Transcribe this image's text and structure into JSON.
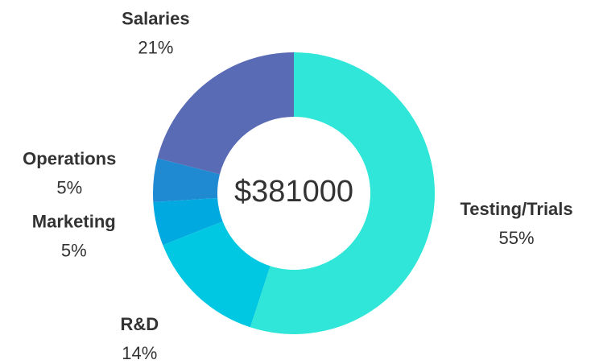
{
  "chart_data": {
    "type": "donut",
    "center_label": "$381000",
    "categories": [
      "Testing/Trials",
      "R&D",
      "Marketing",
      "Operations",
      "Salaries"
    ],
    "values": [
      55,
      14,
      5,
      5,
      21
    ],
    "value_labels": [
      "55%",
      "14%",
      "5%",
      "5%",
      "21%"
    ],
    "colors": [
      "#2fe6d8",
      "#00c8e2",
      "#00a9e0",
      "#1f8ad2",
      "#5a6bb5"
    ]
  }
}
